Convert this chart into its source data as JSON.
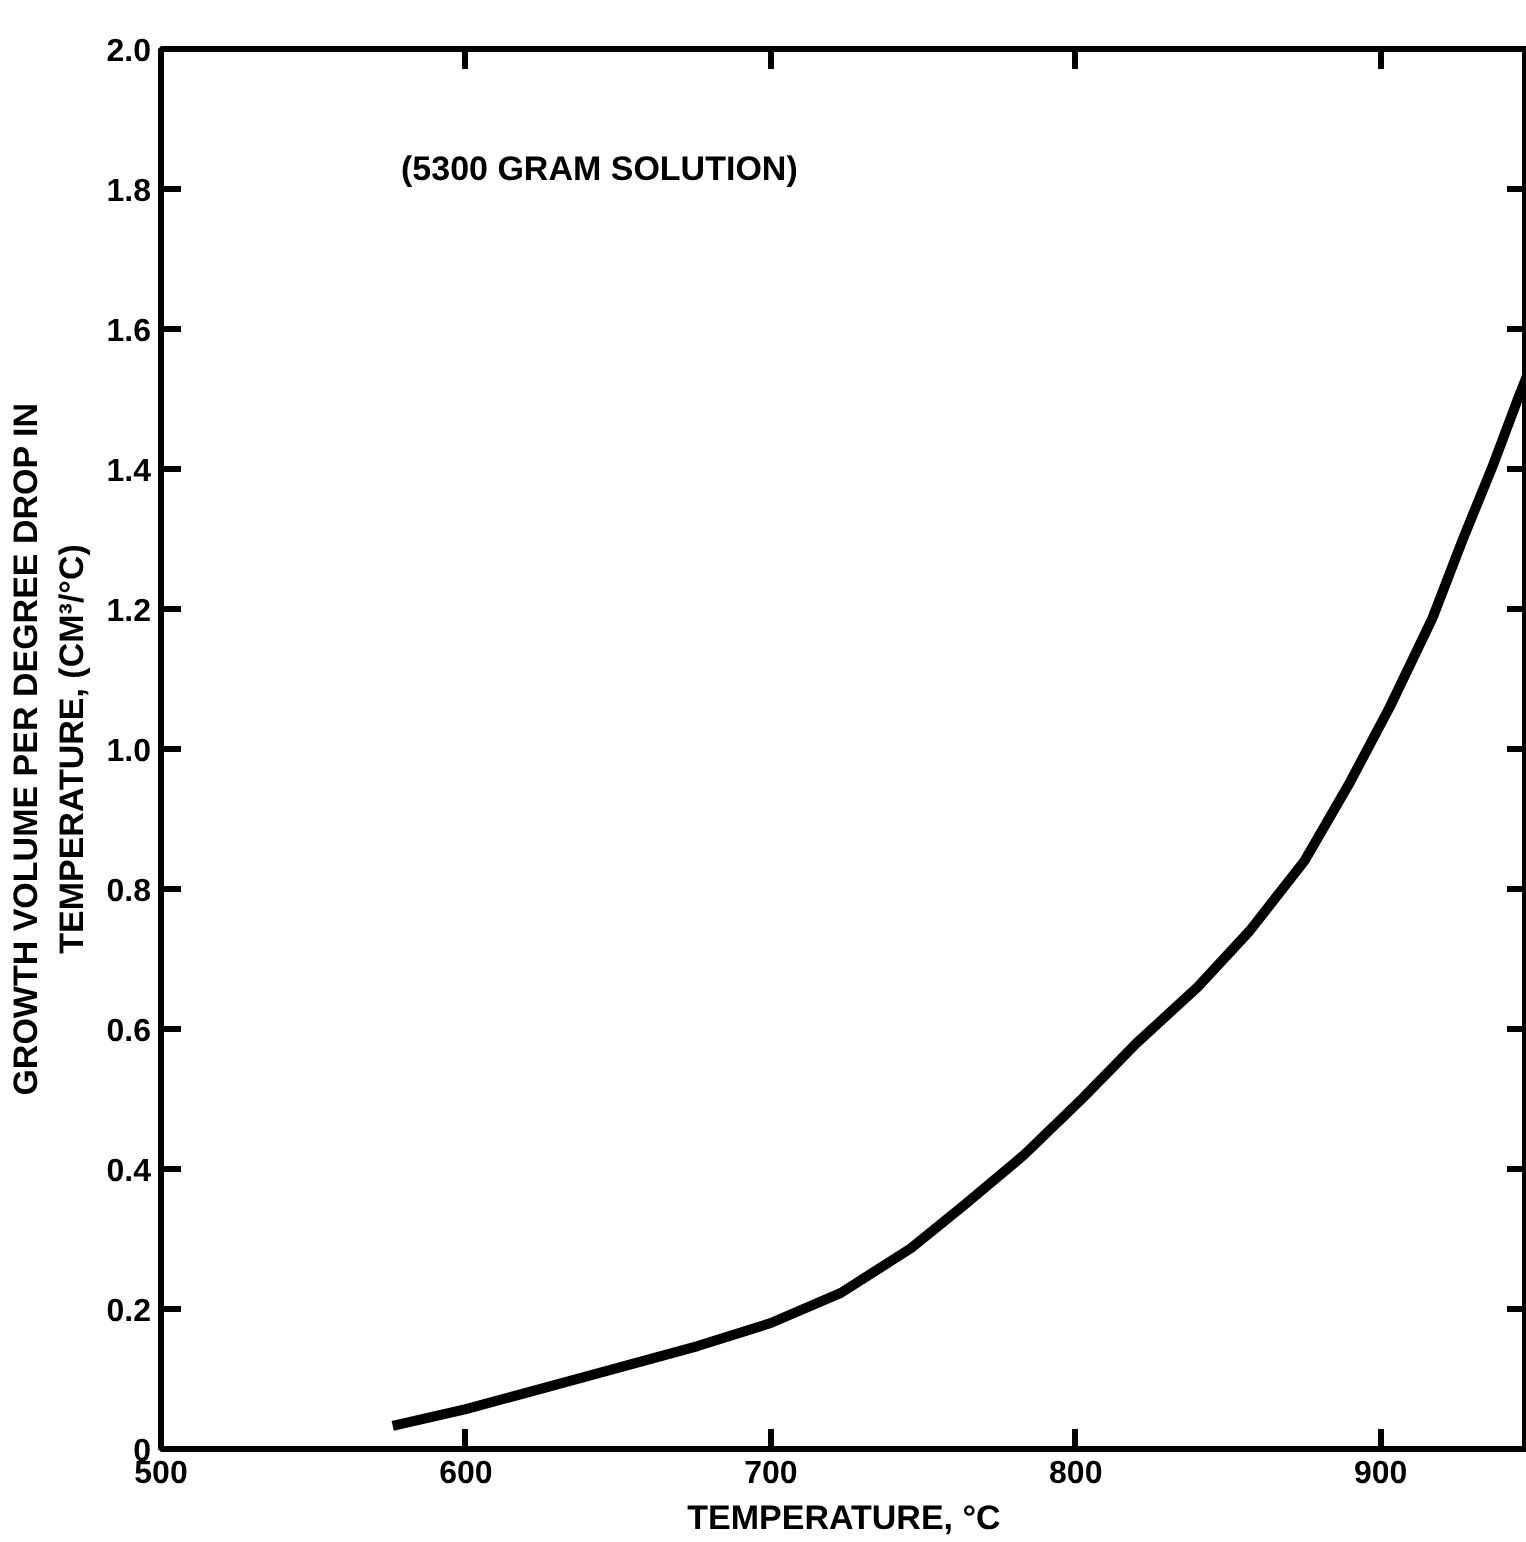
{
  "chart_data": {
    "type": "line",
    "xlabel": "TEMPERATURE, °C",
    "ylabel": "GROWTH VOLUME PER DEGREE DROP IN\nTEMPERATURE, (CM³/°C)",
    "annotations": [
      "(5300 GRAM SOLUTION)"
    ],
    "x": [
      576,
      600,
      639,
      676,
      700,
      723,
      746,
      763,
      783,
      802,
      820,
      840,
      857,
      875,
      890,
      903,
      917,
      927,
      937,
      945,
      948
    ],
    "series": [
      {
        "color": "#000000",
        "values": [
          0.033,
          0.057,
          0.103,
          0.147,
          0.18,
          0.223,
          0.287,
          0.347,
          0.42,
          0.5,
          0.58,
          0.66,
          0.74,
          0.84,
          0.953,
          1.06,
          1.187,
          1.3,
          1.407,
          1.5,
          1.533
        ]
      }
    ],
    "xlim": [
      500,
      948
    ],
    "xticks": [
      500,
      600,
      700,
      800,
      900
    ],
    "ylim": [
      0,
      2
    ],
    "yticks": [
      0,
      0.2,
      0.4,
      0.6,
      0.8,
      {
        "value": 1,
        "label": "1.0"
      },
      1.2,
      1.4,
      1.6,
      1.8,
      {
        "value": 2,
        "label": "2.0"
      }
    ],
    "grid": false,
    "marker": "none",
    "line_style": "solid"
  }
}
